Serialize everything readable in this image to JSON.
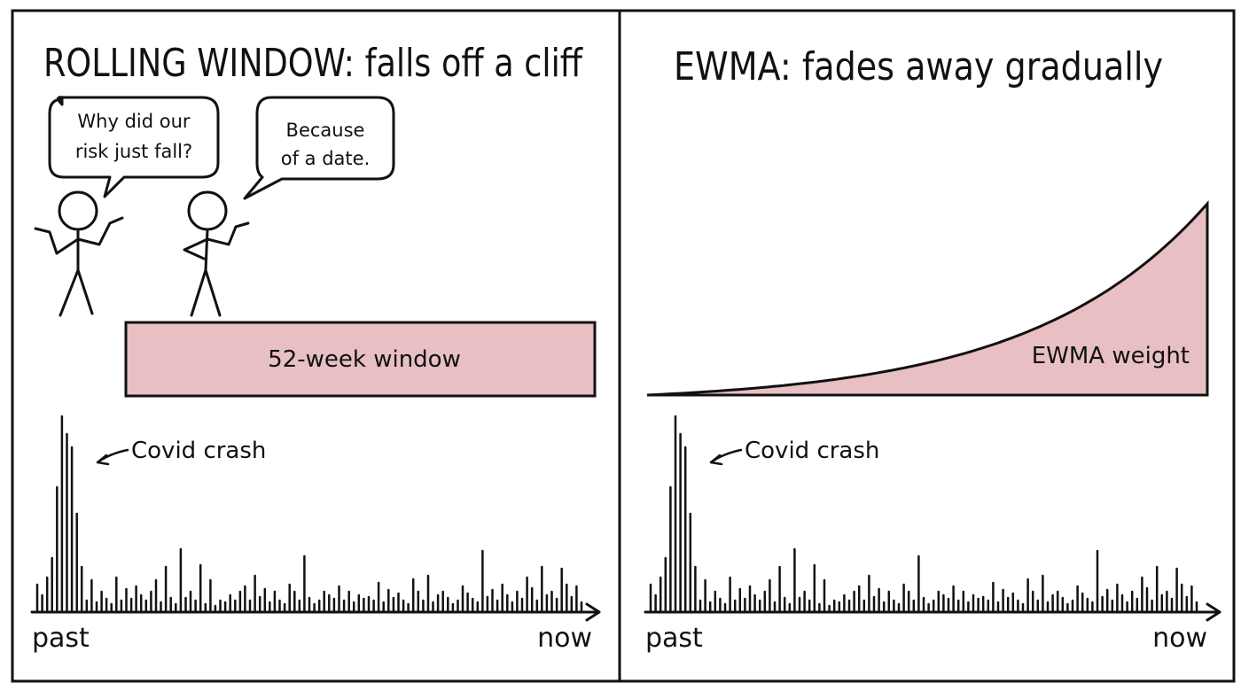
{
  "left_panel": {
    "title": "ROLLING WINDOW: falls off a cliff",
    "speech_left": [
      "Why did our",
      "risk just fall?"
    ],
    "speech_right": [
      "Because",
      "of a date."
    ],
    "window_label": "52-week window",
    "annotation": "Covid crash",
    "axis_start": "past",
    "axis_end": "now"
  },
  "right_panel": {
    "title": "EWMA: fades away gradually",
    "weight_label": "EWMA weight",
    "annotation": "Covid crash",
    "axis_start": "past",
    "axis_end": "now"
  },
  "colors": {
    "ink": "#111111",
    "window_fill": "#e8bfc3",
    "background": "#ffffff"
  },
  "spikes": [
    30,
    18,
    38,
    60,
    140,
    220,
    200,
    185,
    110,
    50,
    12,
    35,
    10,
    22,
    14,
    8,
    38,
    12,
    25,
    14,
    28,
    18,
    12,
    22,
    35,
    10,
    50,
    15,
    8,
    70,
    15,
    22,
    12,
    52,
    8,
    35,
    6,
    12,
    10,
    18,
    12,
    22,
    28,
    12,
    40,
    16,
    25,
    10,
    22,
    12,
    8,
    30,
    22,
    12,
    62,
    15,
    8,
    12,
    22,
    18,
    14,
    28,
    12,
    22,
    10,
    18,
    14,
    16,
    12,
    32,
    10,
    24,
    15,
    20,
    12,
    8,
    36,
    22,
    12,
    40,
    10,
    18,
    22,
    15,
    8,
    12,
    28,
    20,
    14,
    10,
    68,
    16,
    24,
    12,
    30,
    18,
    10,
    22,
    14,
    38,
    26,
    12,
    50,
    18,
    22,
    14,
    48,
    30,
    16,
    28,
    10
  ],
  "ewma_decay": 3.2
}
